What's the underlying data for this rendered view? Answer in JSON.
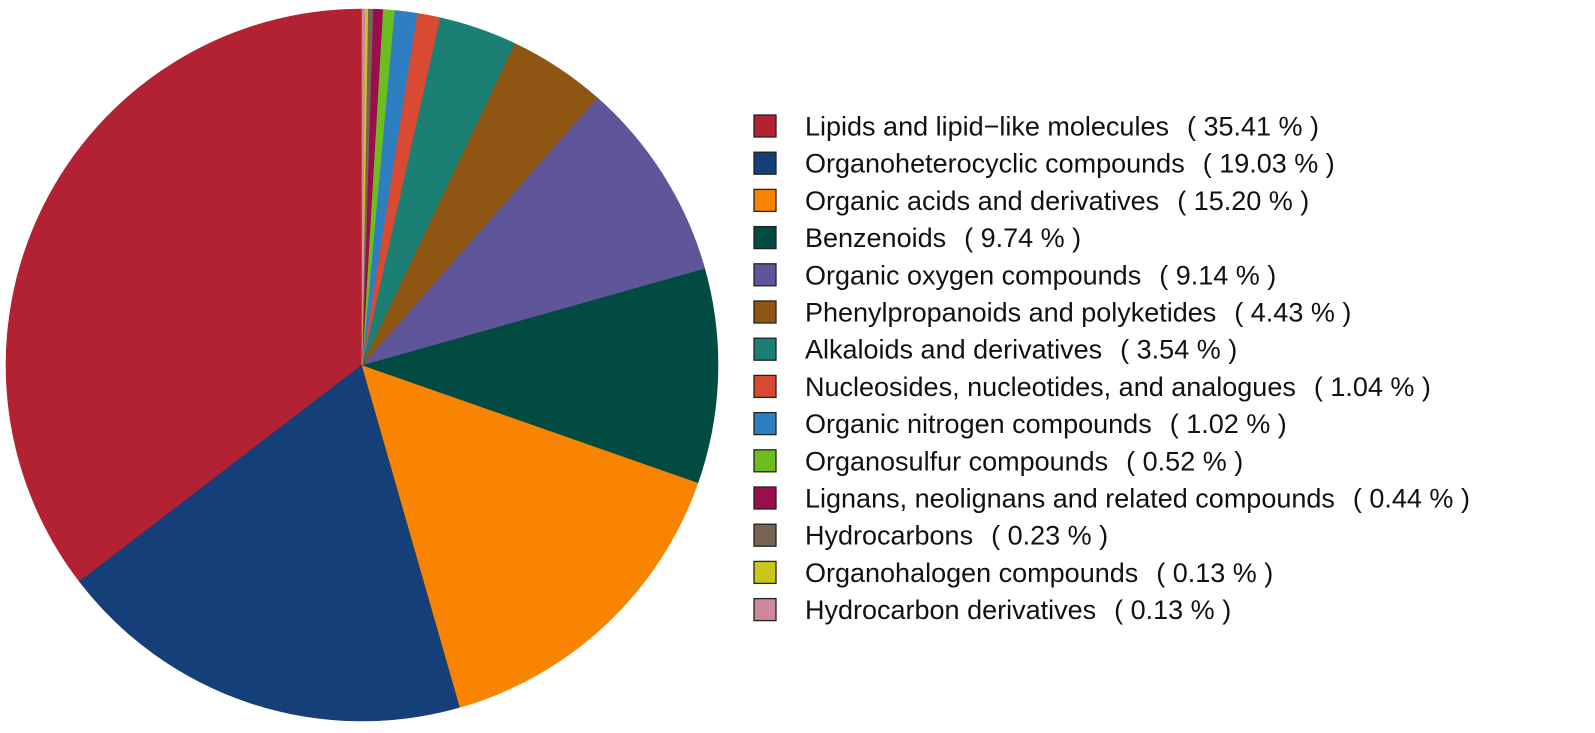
{
  "chart_data": {
    "type": "pie",
    "title": "",
    "start_angle_deg": 90,
    "direction": "counterclockwise",
    "legend_position": "right",
    "slices": [
      {
        "label": "Lipids and lipid−like molecules",
        "value": 35.41,
        "value_label": "( 35.41 % )",
        "color": "#B22232"
      },
      {
        "label": "Organoheterocyclic compounds",
        "value": 19.03,
        "value_label": "( 19.03 % )",
        "color": "#143F78"
      },
      {
        "label": "Organic acids and derivatives",
        "value": 15.2,
        "value_label": "( 15.20 % )",
        "color": "#F88402"
      },
      {
        "label": "Benzenoids",
        "value": 9.74,
        "value_label": "( 9.74 % )",
        "color": "#024B42"
      },
      {
        "label": "Organic oxygen compounds",
        "value": 9.14,
        "value_label": "( 9.14 % )",
        "color": "#5F569A"
      },
      {
        "label": "Phenylpropanoids and polyketides",
        "value": 4.43,
        "value_label": "( 4.43 % )",
        "color": "#8E5513"
      },
      {
        "label": "Alkaloids and derivatives",
        "value": 3.54,
        "value_label": "( 3.54 % )",
        "color": "#1C7F73"
      },
      {
        "label": "Nucleosides, nucleotides, and analogues",
        "value": 1.04,
        "value_label": "( 1.04 % )",
        "color": "#D94A33"
      },
      {
        "label": "Organic nitrogen compounds",
        "value": 1.02,
        "value_label": "( 1.02 % )",
        "color": "#2E7FC2"
      },
      {
        "label": "Organosulfur compounds",
        "value": 0.52,
        "value_label": "( 0.52 % )",
        "color": "#6CBE1E"
      },
      {
        "label": "Lignans, neolignans and related compounds",
        "value": 0.44,
        "value_label": "( 0.44 % )",
        "color": "#9A0E4D"
      },
      {
        "label": "Hydrocarbons",
        "value": 0.23,
        "value_label": "( 0.23 % )",
        "color": "#786450"
      },
      {
        "label": "Organohalogen compounds",
        "value": 0.13,
        "value_label": "( 0.13 % )",
        "color": "#C8C61A"
      },
      {
        "label": "Hydrocarbon derivatives",
        "value": 0.13,
        "value_label": "( 0.13 % )",
        "color": "#CD899A"
      }
    ]
  }
}
